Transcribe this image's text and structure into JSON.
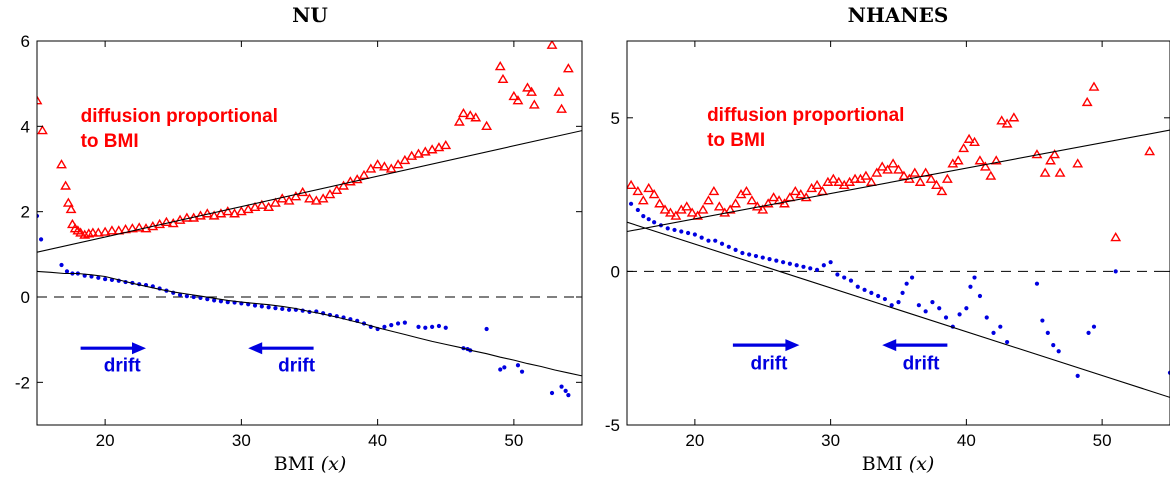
{
  "chart_data": [
    {
      "type": "scatter",
      "title": "NU",
      "xlabel": "BMI",
      "xlabel_var": "(x)",
      "xlim": [
        15,
        55
      ],
      "ylim": [
        -3,
        6
      ],
      "xticks": [
        20,
        30,
        40,
        50
      ],
      "yticks": [
        -2,
        0,
        2,
        4,
        6
      ],
      "zero_line": true,
      "colors": {
        "diffusion": "#ff0000",
        "drift": "#0000e0",
        "fit": "#000000"
      },
      "annotations": {
        "diffusion_line1": "diffusion proportional",
        "diffusion_line2": "to BMI",
        "drift_left": "drift",
        "drift_right": "drift"
      },
      "arrows": [
        {
          "direction": "right",
          "x": [
            18.2,
            23
          ],
          "y": -1.2
        },
        {
          "direction": "left",
          "x": [
            30.5,
            35.3
          ],
          "y": -1.2
        }
      ],
      "annotation_positions": {
        "diffusion": {
          "x": 18.2,
          "y": 4.1
        },
        "drift_left": {
          "x": 19.9,
          "y": -1.75
        },
        "drift_right": {
          "x": 32.7,
          "y": -1.75
        }
      },
      "series": [
        {
          "name": "diffusion",
          "marker": "triangle",
          "x": [
            15.0,
            15.4,
            16.8,
            17.1,
            17.3,
            17.5,
            17.6,
            17.8,
            18.0,
            18.2,
            18.5,
            18.8,
            19.1,
            19.5,
            20.0,
            20.5,
            21.0,
            21.5,
            22.0,
            22.5,
            23.0,
            23.5,
            24.0,
            24.5,
            25.0,
            25.5,
            26.0,
            26.5,
            27.0,
            27.5,
            28.0,
            28.5,
            29.0,
            29.5,
            30.0,
            30.5,
            31.0,
            31.5,
            32.0,
            32.5,
            33.0,
            33.5,
            34.0,
            34.5,
            35.0,
            35.5,
            36.0,
            36.5,
            37.0,
            37.5,
            38.0,
            38.5,
            39.0,
            39.5,
            40.0,
            40.5,
            41.0,
            41.5,
            42.0,
            42.5,
            43.0,
            43.5,
            44.0,
            44.5,
            45.0,
            46.0,
            46.3,
            46.8,
            47.2,
            48.0,
            49.0,
            49.2,
            50.0,
            50.3,
            51.0,
            51.3,
            51.5,
            52.8,
            53.3,
            53.5,
            54.0
          ],
          "y": [
            4.6,
            3.9,
            3.1,
            2.6,
            2.2,
            2.05,
            1.7,
            1.6,
            1.55,
            1.5,
            1.45,
            1.48,
            1.5,
            1.5,
            1.52,
            1.55,
            1.55,
            1.58,
            1.6,
            1.62,
            1.6,
            1.65,
            1.7,
            1.75,
            1.72,
            1.8,
            1.85,
            1.85,
            1.9,
            1.95,
            1.9,
            1.95,
            2.0,
            1.95,
            2.0,
            2.05,
            2.1,
            2.15,
            2.1,
            2.2,
            2.3,
            2.25,
            2.35,
            2.45,
            2.3,
            2.25,
            2.3,
            2.4,
            2.5,
            2.6,
            2.7,
            2.75,
            2.85,
            3.0,
            3.1,
            3.05,
            3.0,
            3.1,
            3.2,
            3.3,
            3.35,
            3.4,
            3.45,
            3.5,
            3.55,
            4.1,
            4.3,
            4.25,
            4.2,
            4.0,
            5.4,
            5.1,
            4.7,
            4.6,
            4.9,
            4.8,
            4.5,
            5.9,
            4.8,
            4.4,
            5.35
          ]
        },
        {
          "name": "drift",
          "marker": "dot",
          "x": [
            15.0,
            15.3,
            16.8,
            17.2,
            17.6,
            18.0,
            18.5,
            19.0,
            19.5,
            20.0,
            20.5,
            21.0,
            21.5,
            22.0,
            22.5,
            23.0,
            23.5,
            24.0,
            24.5,
            25.0,
            25.5,
            26.0,
            26.5,
            27.0,
            27.5,
            28.0,
            28.5,
            29.0,
            29.5,
            30.0,
            30.5,
            31.0,
            31.5,
            32.0,
            32.5,
            33.0,
            33.5,
            34.0,
            34.5,
            35.0,
            35.5,
            36.0,
            36.5,
            37.0,
            37.5,
            38.0,
            38.5,
            39.0,
            39.5,
            40.0,
            40.5,
            41.0,
            41.5,
            42.0,
            43.0,
            43.5,
            44.0,
            44.5,
            45.0,
            46.3,
            46.6,
            46.8,
            48.0,
            49.0,
            49.3,
            50.3,
            50.6,
            52.8,
            53.5,
            53.8,
            54.0
          ],
          "y": [
            1.9,
            1.35,
            0.75,
            0.6,
            0.55,
            0.55,
            0.5,
            0.48,
            0.45,
            0.42,
            0.4,
            0.38,
            0.35,
            0.33,
            0.3,
            0.28,
            0.25,
            0.2,
            0.15,
            0.1,
            0.05,
            0.02,
            0.0,
            -0.02,
            -0.05,
            -0.08,
            -0.1,
            -0.12,
            -0.13,
            -0.15,
            -0.17,
            -0.2,
            -0.22,
            -0.24,
            -0.26,
            -0.28,
            -0.3,
            -0.3,
            -0.32,
            -0.35,
            -0.34,
            -0.38,
            -0.42,
            -0.45,
            -0.48,
            -0.52,
            -0.56,
            -0.62,
            -0.7,
            -0.75,
            -0.7,
            -0.66,
            -0.62,
            -0.6,
            -0.7,
            -0.72,
            -0.7,
            -0.68,
            -0.72,
            -1.2,
            -1.22,
            -1.25,
            -0.75,
            -1.7,
            -1.65,
            -1.6,
            -1.75,
            -2.25,
            -2.1,
            -2.2,
            -2.3
          ]
        },
        {
          "name": "diffusion-fit",
          "marker": "line",
          "x": [
            15,
            55
          ],
          "y": [
            1.05,
            3.9
          ]
        },
        {
          "name": "drift-fit",
          "marker": "line",
          "x": [
            15,
            16,
            17,
            18,
            19,
            20,
            21,
            22,
            23,
            24,
            25,
            26,
            27,
            28,
            29,
            30,
            31,
            32,
            33,
            34,
            35,
            36,
            37,
            38,
            39,
            40,
            41,
            42,
            43,
            44,
            45,
            46,
            47,
            48,
            49,
            50,
            51,
            52,
            53,
            54,
            55
          ],
          "y": [
            0.6,
            0.58,
            0.55,
            0.55,
            0.52,
            0.48,
            0.4,
            0.32,
            0.25,
            0.18,
            0.12,
            0.07,
            0.02,
            -0.03,
            -0.08,
            -0.12,
            -0.15,
            -0.18,
            -0.22,
            -0.27,
            -0.34,
            -0.4,
            -0.47,
            -0.55,
            -0.63,
            -0.72,
            -0.8,
            -0.88,
            -0.96,
            -1.04,
            -1.11,
            -1.18,
            -1.26,
            -1.33,
            -1.41,
            -1.48,
            -1.56,
            -1.63,
            -1.71,
            -1.78,
            -1.85
          ]
        }
      ]
    },
    {
      "type": "scatter",
      "title": "NHANES",
      "xlabel": "BMI",
      "xlabel_var": "(x)",
      "xlim": [
        15,
        55
      ],
      "ylim": [
        -5,
        7.5
      ],
      "xticks": [
        20,
        30,
        40,
        50
      ],
      "yticks": [
        -5,
        0,
        5
      ],
      "zero_line": true,
      "colors": {
        "diffusion": "#ff0000",
        "drift": "#0000e0",
        "fit": "#000000"
      },
      "annotations": {
        "diffusion_line1": "diffusion proportional",
        "diffusion_line2": "to BMI",
        "drift_left": "drift",
        "drift_right": "drift"
      },
      "arrows": [
        {
          "direction": "right",
          "x": [
            22.8,
            27.7
          ],
          "y": -2.4
        },
        {
          "direction": "left",
          "x": [
            33.8,
            38.6
          ],
          "y": -2.4
        }
      ],
      "annotation_positions": {
        "diffusion": {
          "x": 20.9,
          "y": 4.9
        },
        "drift_left": {
          "x": 24.1,
          "y": -3.2
        },
        "drift_right": {
          "x": 35.3,
          "y": -3.2
        }
      },
      "series": [
        {
          "name": "diffusion",
          "marker": "triangle",
          "x": [
            15.3,
            15.8,
            16.2,
            16.6,
            17.0,
            17.4,
            17.8,
            18.2,
            18.6,
            19.0,
            19.4,
            19.8,
            20.2,
            20.6,
            21.0,
            21.4,
            21.8,
            22.2,
            22.6,
            23.0,
            23.4,
            23.8,
            24.2,
            24.6,
            25.0,
            25.4,
            25.8,
            26.2,
            26.6,
            27.0,
            27.4,
            27.8,
            28.2,
            28.6,
            29.0,
            29.4,
            29.8,
            30.2,
            30.6,
            31.0,
            31.4,
            31.8,
            32.2,
            32.6,
            33.0,
            33.4,
            33.8,
            34.2,
            34.6,
            35.0,
            35.4,
            35.8,
            36.2,
            36.6,
            37.0,
            37.4,
            37.8,
            38.2,
            38.6,
            39.0,
            39.4,
            39.8,
            40.2,
            40.6,
            41.0,
            41.4,
            41.8,
            42.2,
            42.6,
            43.0,
            43.5,
            45.2,
            45.8,
            46.2,
            46.5,
            46.9,
            48.2,
            48.9,
            49.4,
            51.0,
            53.5
          ],
          "y": [
            2.8,
            2.6,
            2.3,
            2.7,
            2.5,
            2.2,
            2.0,
            1.9,
            1.8,
            2.0,
            2.1,
            1.9,
            1.8,
            2.0,
            2.3,
            2.6,
            2.1,
            1.9,
            2.0,
            2.2,
            2.5,
            2.6,
            2.3,
            2.1,
            2.0,
            2.2,
            2.4,
            2.3,
            2.2,
            2.4,
            2.6,
            2.5,
            2.4,
            2.7,
            2.8,
            2.6,
            2.9,
            3.0,
            2.9,
            2.8,
            2.9,
            3.0,
            3.0,
            3.1,
            2.9,
            3.2,
            3.4,
            3.3,
            3.5,
            3.3,
            3.1,
            3.0,
            3.2,
            2.9,
            3.2,
            3.0,
            2.8,
            2.6,
            3.0,
            3.5,
            3.6,
            4.0,
            4.3,
            4.2,
            3.6,
            3.4,
            3.1,
            3.6,
            4.9,
            4.8,
            5.0,
            3.8,
            3.2,
            3.6,
            3.8,
            3.2,
            3.5,
            5.5,
            6.0,
            1.1,
            3.9
          ]
        },
        {
          "name": "drift",
          "marker": "dot",
          "x": [
            15.3,
            15.8,
            16.2,
            16.6,
            17.0,
            17.5,
            18.0,
            18.5,
            19.0,
            19.5,
            20.0,
            20.5,
            21.0,
            21.5,
            22.0,
            22.5,
            23.0,
            23.5,
            24.0,
            24.5,
            25.0,
            25.5,
            26.0,
            26.5,
            27.0,
            27.5,
            28.0,
            28.5,
            29.0,
            29.5,
            30.0,
            30.5,
            31.0,
            31.5,
            32.0,
            32.5,
            33.0,
            33.5,
            34.0,
            34.5,
            35.0,
            35.3,
            35.6,
            36.0,
            36.5,
            37.0,
            37.5,
            38.0,
            38.5,
            39.0,
            39.5,
            40.0,
            40.3,
            40.6,
            41.0,
            41.5,
            42.0,
            42.5,
            43.0,
            45.2,
            45.6,
            46.0,
            46.4,
            46.8,
            48.2,
            49.0,
            49.4,
            51.0,
            55.0
          ],
          "y": [
            2.2,
            2.0,
            1.8,
            1.7,
            1.6,
            1.5,
            1.4,
            1.35,
            1.3,
            1.25,
            1.2,
            1.1,
            1.0,
            1.0,
            0.9,
            0.8,
            0.7,
            0.6,
            0.55,
            0.5,
            0.45,
            0.4,
            0.35,
            0.3,
            0.25,
            0.2,
            0.15,
            0.1,
            0.05,
            0.2,
            0.3,
            -0.1,
            -0.2,
            -0.3,
            -0.5,
            -0.6,
            -0.7,
            -0.8,
            -0.9,
            -1.1,
            -1.0,
            -0.7,
            -0.4,
            -0.2,
            -1.1,
            -1.3,
            -1.0,
            -1.2,
            -1.5,
            -1.8,
            -1.4,
            -1.2,
            -0.5,
            -0.2,
            -0.8,
            -1.5,
            -2.0,
            -1.8,
            -2.3,
            -0.4,
            -1.6,
            -2.0,
            -2.4,
            -2.6,
            -3.4,
            -2.0,
            -1.8,
            0.0,
            -3.3
          ]
        },
        {
          "name": "diffusion-fit",
          "marker": "line",
          "x": [
            15,
            55
          ],
          "y": [
            1.3,
            4.6
          ]
        },
        {
          "name": "drift-fit",
          "marker": "line",
          "x": [
            15,
            55
          ],
          "y": [
            1.6,
            -4.1
          ]
        }
      ]
    }
  ]
}
